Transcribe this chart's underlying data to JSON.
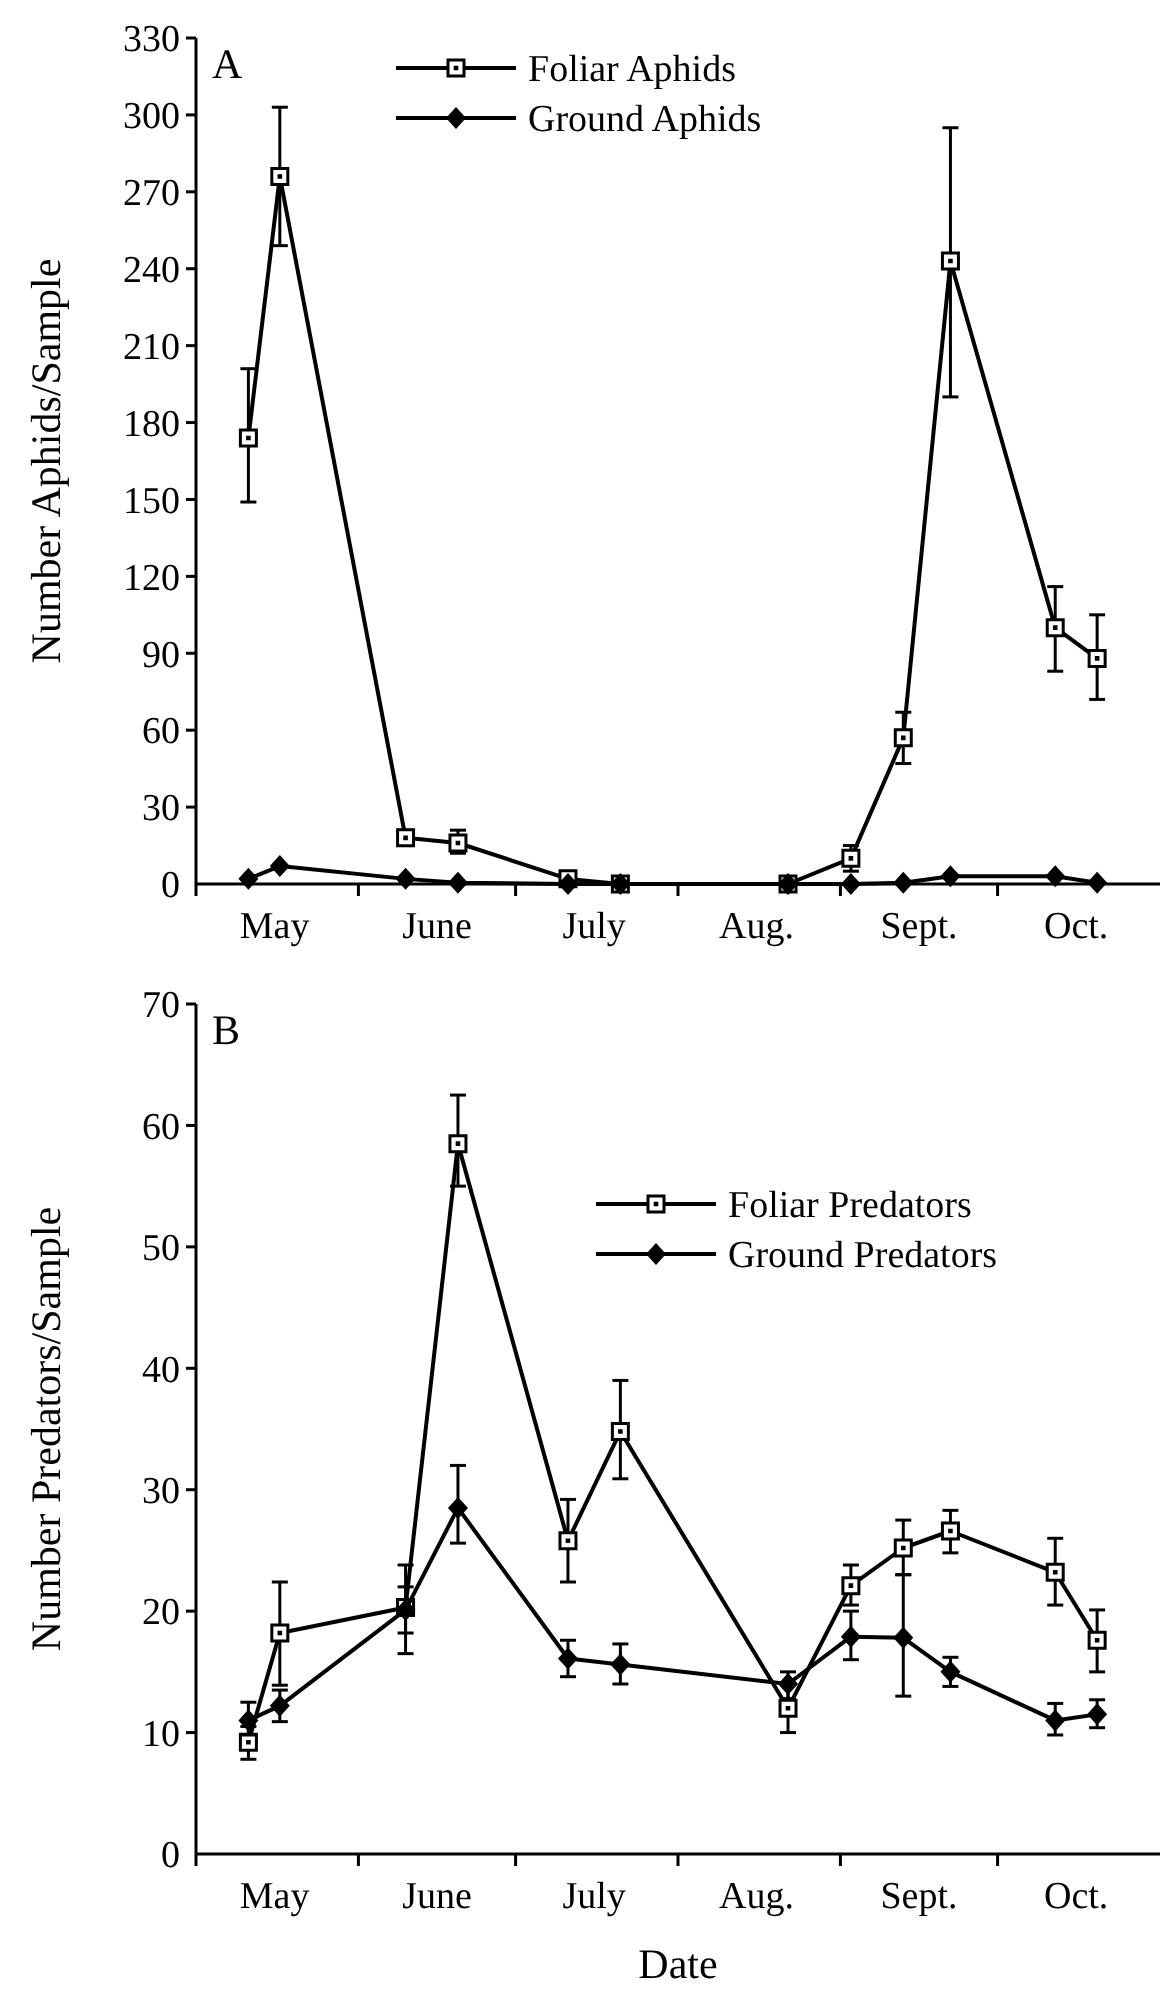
{
  "chart_data": [
    {
      "type": "line",
      "ylabel": "Number Aphids/Sample",
      "annotations": [
        "A"
      ],
      "legend": "top",
      "xlim": [
        "--05-01",
        "--11-01"
      ],
      "ylim": [
        0,
        330
      ],
      "yticks": [
        0,
        30,
        60,
        90,
        120,
        150,
        180,
        210,
        240,
        270,
        300,
        330
      ],
      "xticks": [
        {
          "value": "--05-01",
          "label": null
        },
        {
          "value": "--05-16",
          "label": "May"
        },
        {
          "value": "--06-01",
          "label": null
        },
        {
          "value": "--06-16",
          "label": "June"
        },
        {
          "value": "--07-01",
          "label": null
        },
        {
          "value": "--07-16",
          "label": "July"
        },
        {
          "value": "--08-01",
          "label": null
        },
        {
          "value": "--08-16",
          "label": "Aug."
        },
        {
          "value": "--09-01",
          "label": null
        },
        {
          "value": "--09-16",
          "label": "Sept."
        },
        {
          "value": "--10-01",
          "label": null
        },
        {
          "value": "--10-16",
          "label": "Oct."
        }
      ],
      "x": [
        "--05-11",
        "--05-17",
        "--06-10",
        "--06-20",
        "--07-11",
        "--07-21",
        "--08-22",
        "--09-03",
        "--09-13",
        "--09-22",
        "--10-12",
        "--10-20"
      ],
      "series": [
        {
          "name": "Foliar Aphids",
          "color": "#000000",
          "marker": "square",
          "values": [
            174,
            276,
            18,
            16,
            2,
            0,
            0,
            10,
            57,
            243,
            100,
            88
          ],
          "errors": [
            [
              149,
              201
            ],
            [
              249,
              303
            ],
            [
              15,
              21
            ],
            [
              12,
              21
            ],
            null,
            null,
            null,
            [
              5,
              15
            ],
            [
              47,
              67
            ],
            [
              190,
              295
            ],
            [
              83,
              116
            ],
            [
              72,
              105
            ]
          ]
        },
        {
          "name": "Ground Aphids",
          "color": "#000000",
          "marker": "diamond",
          "values": [
            2,
            7,
            2,
            0.5,
            0,
            0,
            0,
            0,
            0.5,
            3,
            3,
            0.5
          ]
        }
      ]
    },
    {
      "type": "line",
      "xlabel": "Date",
      "ylabel": "Number Predators/Sample",
      "annotations": [
        "B"
      ],
      "legend": "top right",
      "xlim": [
        "--05-01",
        "--11-01"
      ],
      "ylim": [
        0,
        70
      ],
      "yticks": [
        0,
        10,
        20,
        30,
        40,
        50,
        60,
        70
      ],
      "xticks": [
        {
          "value": "--05-01",
          "label": null
        },
        {
          "value": "--05-16",
          "label": "May"
        },
        {
          "value": "--06-01",
          "label": null
        },
        {
          "value": "--06-16",
          "label": "June"
        },
        {
          "value": "--07-01",
          "label": null
        },
        {
          "value": "--07-16",
          "label": "July"
        },
        {
          "value": "--08-01",
          "label": null
        },
        {
          "value": "--08-16",
          "label": "Aug."
        },
        {
          "value": "--09-01",
          "label": null
        },
        {
          "value": "--09-16",
          "label": "Sept."
        },
        {
          "value": "--10-01",
          "label": null
        },
        {
          "value": "--10-16",
          "label": "Oct."
        }
      ],
      "x": [
        "--05-11",
        "--05-17",
        "--06-10",
        "--06-20",
        "--07-11",
        "--07-21",
        "--08-22",
        "--09-03",
        "--09-13",
        "--09-22",
        "--10-12",
        "--10-20"
      ],
      "series": [
        {
          "name": "Foliar Predators",
          "color": "#000000",
          "marker": "square",
          "values": [
            9.2,
            18.2,
            20.3,
            58.5,
            25.8,
            34.8,
            12,
            22.1,
            25.2,
            26.6,
            23.2,
            17.6
          ],
          "errors": [
            [
              7.8,
              10.5
            ],
            [
              13.9,
              22.4
            ],
            [
              16.5,
              23.8
            ],
            [
              55,
              62.5
            ],
            [
              22.4,
              29.2
            ],
            [
              30.9,
              39
            ],
            [
              10,
              14
            ],
            [
              20.5,
              23.8
            ],
            [
              23,
              27.5
            ],
            [
              24.8,
              28.3
            ],
            [
              20.5,
              26
            ],
            [
              15,
              20.1
            ]
          ]
        },
        {
          "name": "Ground Predators",
          "color": "#000000",
          "marker": "diamond",
          "values": [
            11,
            12.2,
            20.1,
            28.5,
            16.1,
            15.6,
            14,
            17.9,
            17.8,
            15,
            11,
            11.5
          ],
          "errors": [
            [
              9.8,
              12.5
            ],
            [
              10.9,
              13.5
            ],
            [
              18.2,
              22
            ],
            [
              25.6,
              32
            ],
            [
              14.6,
              17.6
            ],
            [
              14,
              17.3
            ],
            [
              12.8,
              15
            ],
            [
              16,
              20
            ],
            [
              13,
              23
            ],
            [
              13.8,
              16.2
            ],
            [
              9.8,
              12.4
            ],
            [
              10.4,
              12.7
            ]
          ]
        }
      ]
    }
  ]
}
